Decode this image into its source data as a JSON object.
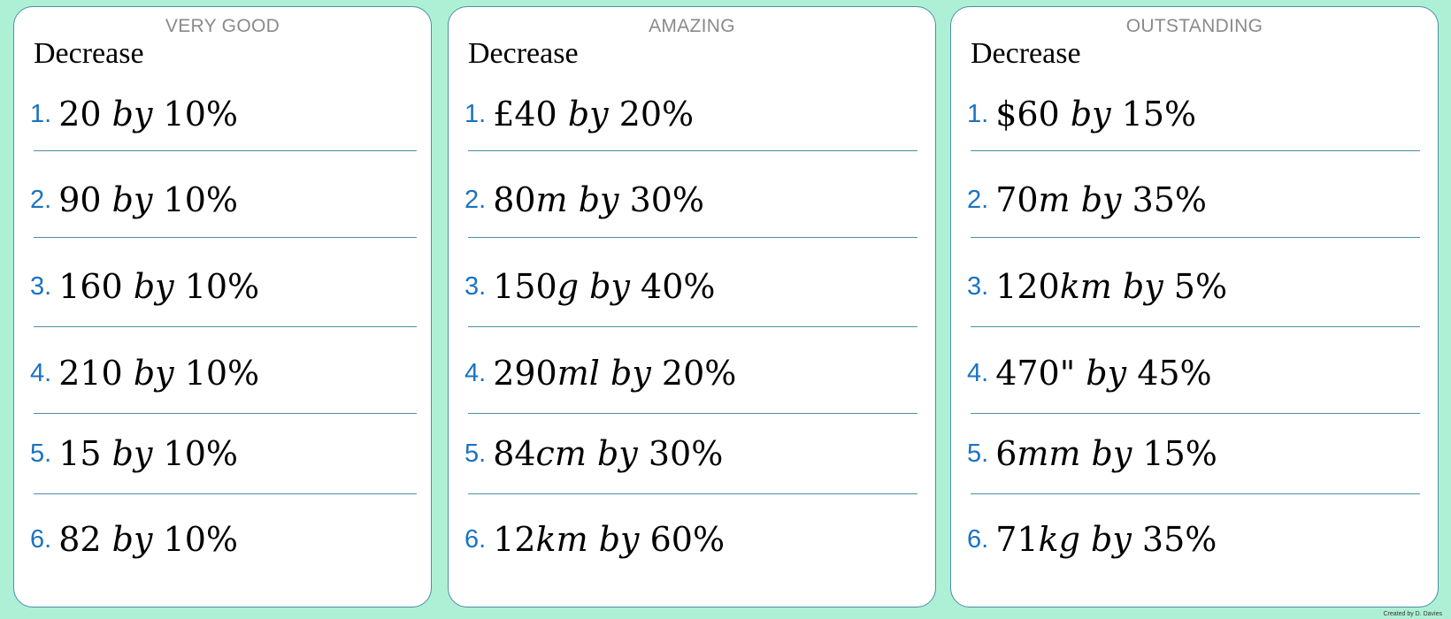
{
  "cards": [
    {
      "level": "VERY GOOD",
      "heading": "Decrease",
      "questions": [
        {
          "num": "1.",
          "value": "20",
          "unit": "",
          "by": "by",
          "percent": "10%"
        },
        {
          "num": "2.",
          "value": "90",
          "unit": "",
          "by": "by",
          "percent": "10%"
        },
        {
          "num": "3.",
          "value": "160",
          "unit": "",
          "by": "by",
          "percent": "10%"
        },
        {
          "num": "4.",
          "value": "210",
          "unit": "",
          "by": "by",
          "percent": "10%"
        },
        {
          "num": "5.",
          "value": "15",
          "unit": "",
          "by": "by",
          "percent": "10%"
        },
        {
          "num": "6.",
          "value": "82",
          "unit": "",
          "by": "by",
          "percent": "10%"
        }
      ]
    },
    {
      "level": "AMAZING",
      "heading": "Decrease",
      "questions": [
        {
          "num": "1.",
          "value": "£40",
          "unit": "",
          "by": "by",
          "percent": "20%"
        },
        {
          "num": "2.",
          "value": "80",
          "unit": "m",
          "by": "by",
          "percent": "30%"
        },
        {
          "num": "3.",
          "value": "150",
          "unit": "g",
          "by": "by",
          "percent": "40%"
        },
        {
          "num": "4.",
          "value": "290",
          "unit": "ml",
          "by": "by",
          "percent": "20%"
        },
        {
          "num": "5.",
          "value": "84",
          "unit": "cm",
          "by": "by",
          "percent": "30%"
        },
        {
          "num": "6.",
          "value": "12",
          "unit": "km",
          "by": "by",
          "percent": "60%"
        }
      ]
    },
    {
      "level": "OUTSTANDING",
      "heading": "Decrease",
      "questions": [
        {
          "num": "1.",
          "value": "$60",
          "unit": "",
          "by": "by",
          "percent": "15%"
        },
        {
          "num": "2.",
          "value": "70",
          "unit": "m",
          "by": "by",
          "percent": "35%"
        },
        {
          "num": "3.",
          "value": "120",
          "unit": "km",
          "by": "by",
          "percent": "5%"
        },
        {
          "num": "4.",
          "value": "470\"",
          "unit": "",
          "by": "by",
          "percent": "45%"
        },
        {
          "num": "5.",
          "value": "6",
          "unit": "mm",
          "by": "by",
          "percent": "15%"
        },
        {
          "num": "6.",
          "value": "71",
          "unit": "kg",
          "by": "by",
          "percent": "35%"
        }
      ]
    }
  ],
  "credit": "Created by D. Davies"
}
